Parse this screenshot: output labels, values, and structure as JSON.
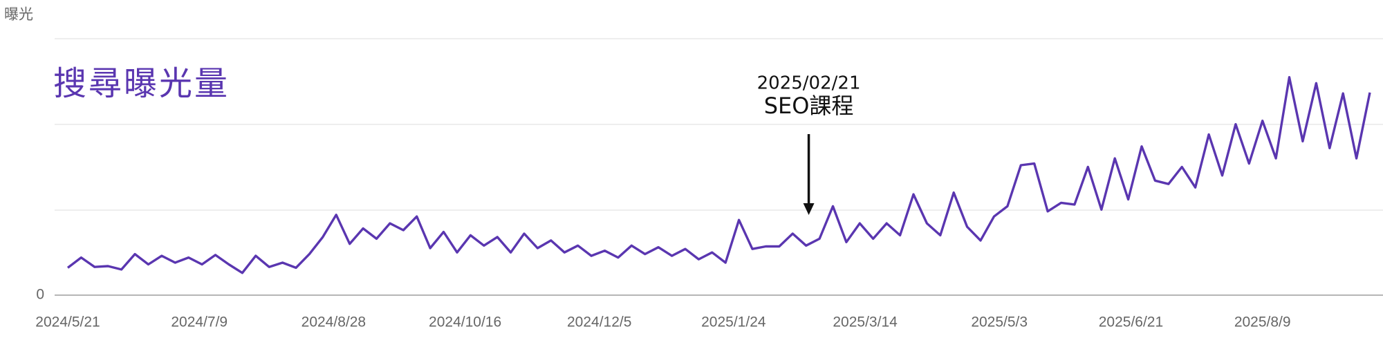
{
  "chart_data": {
    "type": "line",
    "title": "搜尋曝光量",
    "y_label": "曝光",
    "annotation": {
      "date": "2025/02/21",
      "text": "SEO課程"
    },
    "color": "#5a36b0",
    "xlim": [
      "2024/5/21",
      "2025/9/18"
    ],
    "xticks": [
      "2024/5/21",
      "2024/7/9",
      "2024/8/28",
      "2024/10/16",
      "2024/12/5",
      "2025/1/24",
      "2025/3/14",
      "2025/5/3",
      "2025/6/21",
      "2025/8/9"
    ],
    "ylim": [
      0,
      300
    ],
    "yticks": [
      0
    ],
    "x": [
      "2024/5/21",
      "2024/5/26",
      "2024/5/31",
      "2024/6/5",
      "2024/6/10",
      "2024/6/15",
      "2024/6/20",
      "2024/6/25",
      "2024/6/30",
      "2024/7/5",
      "2024/7/10",
      "2024/7/15",
      "2024/7/20",
      "2024/7/25",
      "2024/7/30",
      "2024/8/4",
      "2024/8/9",
      "2024/8/14",
      "2024/8/19",
      "2024/8/24",
      "2024/8/29",
      "2024/9/3",
      "2024/9/8",
      "2024/9/13",
      "2024/9/18",
      "2024/9/23",
      "2024/9/28",
      "2024/10/3",
      "2024/10/8",
      "2024/10/13",
      "2024/10/18",
      "2024/10/23",
      "2024/10/28",
      "2024/11/2",
      "2024/11/7",
      "2024/11/12",
      "2024/11/17",
      "2024/11/22",
      "2024/11/27",
      "2024/12/2",
      "2024/12/7",
      "2024/12/12",
      "2024/12/17",
      "2024/12/22",
      "2024/12/27",
      "2025/1/1",
      "2025/1/6",
      "2025/1/11",
      "2025/1/16",
      "2025/1/21",
      "2025/1/26",
      "2025/1/31",
      "2025/2/5",
      "2025/2/10",
      "2025/2/15",
      "2025/2/20",
      "2025/2/25",
      "2025/3/2",
      "2025/3/7",
      "2025/3/12",
      "2025/3/17",
      "2025/3/22",
      "2025/3/27",
      "2025/4/1",
      "2025/4/6",
      "2025/4/11",
      "2025/4/16",
      "2025/4/21",
      "2025/4/26",
      "2025/5/1",
      "2025/5/6",
      "2025/5/11",
      "2025/5/16",
      "2025/5/21",
      "2025/5/26",
      "2025/5/31",
      "2025/6/5",
      "2025/6/10",
      "2025/6/15",
      "2025/6/20",
      "2025/6/25",
      "2025/6/30",
      "2025/7/5",
      "2025/7/10",
      "2025/7/15",
      "2025/7/20",
      "2025/7/25",
      "2025/7/30",
      "2025/8/4",
      "2025/8/9",
      "2025/8/14",
      "2025/8/19",
      "2025/8/24",
      "2025/8/29",
      "2025/9/3",
      "2025/9/8",
      "2025/9/13",
      "2025/9/18"
    ],
    "values": [
      32,
      44,
      33,
      34,
      30,
      48,
      36,
      46,
      38,
      44,
      36,
      47,
      36,
      26,
      46,
      33,
      38,
      32,
      48,
      68,
      94,
      60,
      78,
      66,
      84,
      76,
      92,
      55,
      74,
      50,
      70,
      58,
      68,
      50,
      72,
      55,
      64,
      50,
      58,
      46,
      52,
      44,
      58,
      48,
      56,
      46,
      54,
      42,
      50,
      38,
      88,
      54,
      57,
      57,
      72,
      58,
      66,
      104,
      62,
      84,
      66,
      84,
      70,
      118,
      84,
      70,
      120,
      80,
      64,
      92,
      104,
      152,
      154,
      98,
      108,
      106,
      150,
      100,
      160,
      112,
      174,
      134,
      130,
      150,
      126,
      188,
      140,
      200,
      154,
      204,
      160,
      255,
      180,
      248,
      172,
      236,
      160,
      237
    ]
  }
}
